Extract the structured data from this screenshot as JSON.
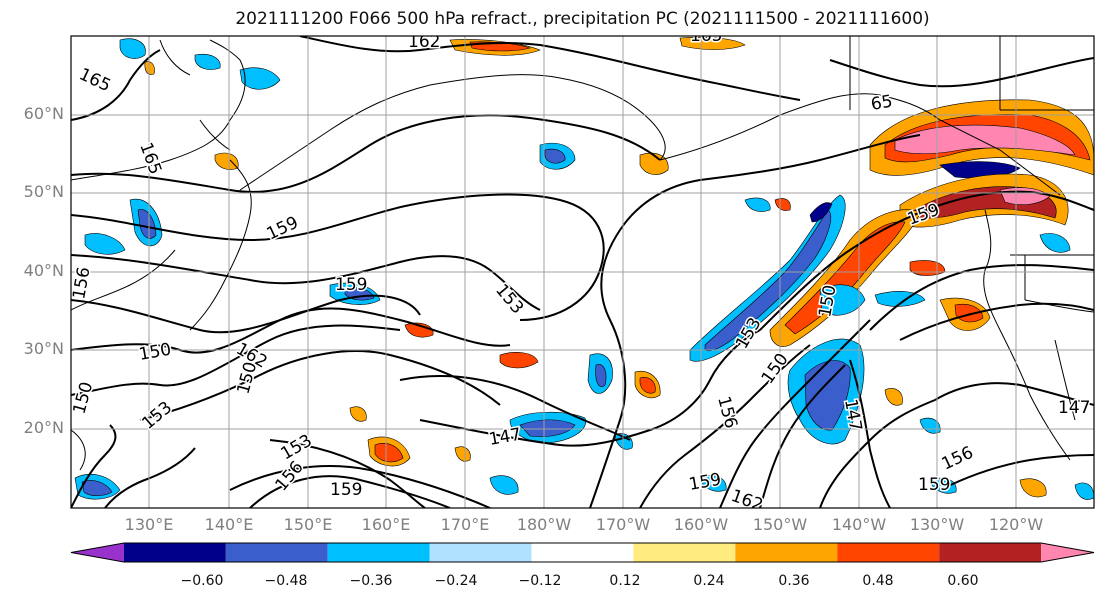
{
  "title": "2021111200 F066 500 hPa refract., precipitation PC (2021111500 - 2021111600)",
  "lat_labels": [
    "60°N",
    "50°N",
    "40°N",
    "30°N",
    "20°N"
  ],
  "lon_labels": [
    "130°E",
    "140°E",
    "150°E",
    "160°E",
    "170°E",
    "180°W",
    "170°W",
    "160°W",
    "150°W",
    "140°W",
    "130°W",
    "120°W"
  ],
  "contour_labels": [
    "162",
    "165",
    "165",
    "165",
    "65",
    "159",
    "159",
    "159",
    "153",
    "156",
    "150",
    "150",
    "162",
    "150",
    "153",
    "153",
    "156",
    "147",
    "159",
    "159",
    "156",
    "153",
    "150",
    "147",
    "156",
    "159",
    "162",
    "147",
    "150"
  ],
  "colorbar": {
    "ticks": [
      "−0.60",
      "−0.48",
      "−0.36",
      "−0.24",
      "−0.12",
      "0.12",
      "0.24",
      "0.36",
      "0.48",
      "0.60"
    ],
    "colors": [
      "#9932cc",
      "#00008b",
      "#3a5fcd",
      "#00bfff",
      "#b0e0ff",
      "#ffffff",
      "#ffeb80",
      "#ffa500",
      "#ff4500",
      "#b22222",
      "#ff86b0"
    ]
  }
}
